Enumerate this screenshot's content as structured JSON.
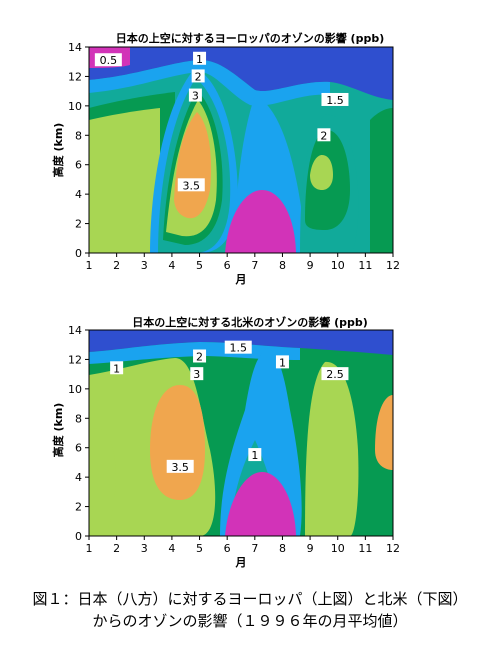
{
  "palette": {
    "l05": "#d233b8",
    "l1": "#2f4fcf",
    "l15": "#1aa3ef",
    "l2": "#11aa9a",
    "l25": "#069a52",
    "l3": "#a8d653",
    "l35": "#f0a64e"
  },
  "chart_data": [
    {
      "type": "contour",
      "title": "日本の上空に対するヨーロッパのオゾンの影響 (ppb)",
      "xlabel": "月",
      "ylabel": "高度 (km)",
      "xlim": [
        1,
        12
      ],
      "ylim": [
        0,
        14
      ],
      "x_ticks": [
        "1",
        "2",
        "3",
        "4",
        "5",
        "6",
        "7",
        "8",
        "9",
        "10",
        "11",
        "12"
      ],
      "y_ticks": [
        "0",
        "2",
        "4",
        "6",
        "8",
        "10",
        "12",
        "14"
      ],
      "contour_labels": [
        {
          "text": "0.5",
          "x": 1.7,
          "y": 13.1
        },
        {
          "text": "1",
          "x": 5.0,
          "y": 13.2
        },
        {
          "text": "2",
          "x": 4.95,
          "y": 12.0
        },
        {
          "text": "3",
          "x": 4.85,
          "y": 10.7
        },
        {
          "text": "3.5",
          "x": 4.7,
          "y": 4.6
        },
        {
          "text": "1.5",
          "x": 9.9,
          "y": 10.4
        },
        {
          "text": "2",
          "x": 9.5,
          "y": 8.0
        }
      ]
    },
    {
      "type": "contour",
      "title": "日本の上空に対する北米のオゾンの影響 (ppb)",
      "xlabel": "月",
      "ylabel": "高度 (km)",
      "xlim": [
        1,
        12
      ],
      "ylim": [
        0,
        14
      ],
      "x_ticks": [
        "1",
        "2",
        "3",
        "4",
        "5",
        "6",
        "7",
        "8",
        "9",
        "10",
        "11",
        "12"
      ],
      "y_ticks": [
        "0",
        "2",
        "4",
        "6",
        "8",
        "10",
        "12",
        "14"
      ],
      "contour_labels": [
        {
          "text": "1",
          "x": 2.0,
          "y": 11.4
        },
        {
          "text": "2",
          "x": 5.0,
          "y": 12.2
        },
        {
          "text": "3",
          "x": 4.9,
          "y": 11.0
        },
        {
          "text": "1.5",
          "x": 6.4,
          "y": 12.8
        },
        {
          "text": "1",
          "x": 8.0,
          "y": 11.8
        },
        {
          "text": "2.5",
          "x": 9.9,
          "y": 11.0
        },
        {
          "text": "3.5",
          "x": 4.3,
          "y": 4.7
        },
        {
          "text": "1",
          "x": 7.0,
          "y": 5.5
        }
      ]
    }
  ],
  "caption": {
    "line1": "図１：日本（八方）に対するヨーロッパ（上図）と北米（下図）",
    "line2": "からのオゾンの影響（１９９６年の月平均値）"
  }
}
